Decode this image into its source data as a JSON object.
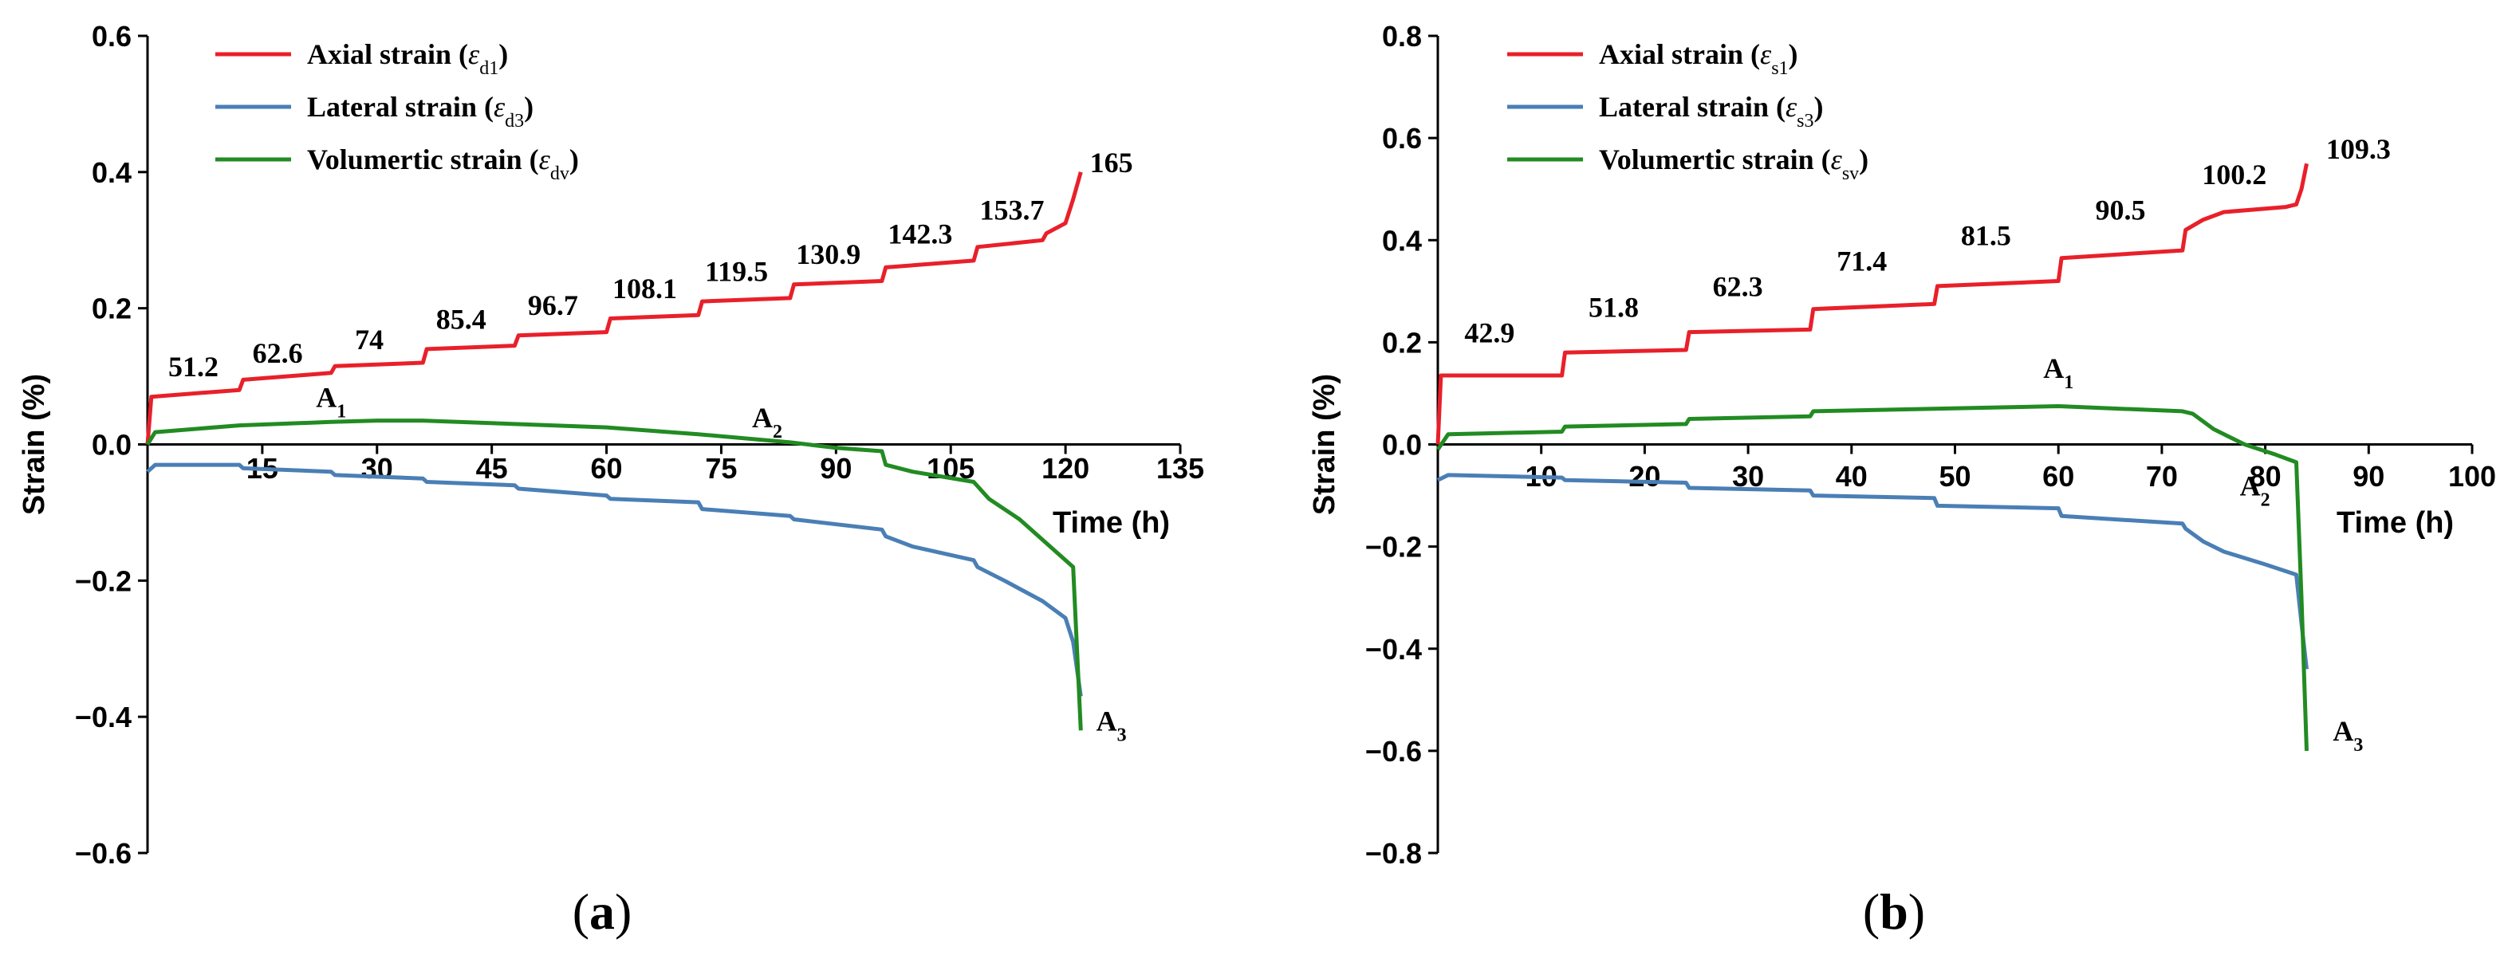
{
  "colors": {
    "axial": "#e8202a",
    "lateral": "#4a7fb5",
    "volumetric": "#228b22",
    "axis": "#000000"
  },
  "chart_data": [
    {
      "type": "line",
      "panel_label": "(a)",
      "panel_letter": "a",
      "ylabel": "Strain (%)",
      "xlabel": "Time (h)",
      "ylim": [
        -0.6,
        0.6
      ],
      "xlim": [
        0,
        135
      ],
      "yticks": [
        {
          "v": 0.6,
          "label": "0.6"
        },
        {
          "v": 0.4,
          "label": "0.4"
        },
        {
          "v": 0.2,
          "label": "0.2"
        },
        {
          "v": 0.0,
          "label": "0.0"
        },
        {
          "v": -0.2,
          "label": "−0.2"
        },
        {
          "v": -0.4,
          "label": "−0.4"
        },
        {
          "v": -0.6,
          "label": "−0.6"
        }
      ],
      "xticks": [
        {
          "v": 15,
          "label": "15"
        },
        {
          "v": 30,
          "label": "30"
        },
        {
          "v": 45,
          "label": "45"
        },
        {
          "v": 60,
          "label": "60"
        },
        {
          "v": 75,
          "label": "75"
        },
        {
          "v": 90,
          "label": "90"
        },
        {
          "v": 105,
          "label": "105"
        },
        {
          "v": 120,
          "label": "120"
        },
        {
          "v": 135,
          "label": "135"
        }
      ],
      "legend": [
        {
          "key": "axial",
          "text": "Axial strain (",
          "sym": "ε",
          "sub": "d1",
          "close": ")"
        },
        {
          "key": "lateral",
          "text": "Lateral strain (",
          "sym": "ε",
          "sub": "d3",
          "close": ")"
        },
        {
          "key": "volumetric",
          "text": "Volumertic strain (",
          "sym": "ε",
          "sub": "dv",
          "close": ")"
        }
      ],
      "series": [
        {
          "name": "Axial strain",
          "key": "axial",
          "x": [
            0,
            0.5,
            12,
            12.5,
            24,
            24.5,
            36,
            36.5,
            48,
            48.5,
            60,
            60.5,
            72,
            72.5,
            84,
            84.5,
            96,
            96.5,
            108,
            108.5,
            117,
            117.5,
            120,
            121,
            122
          ],
          "y": [
            0.0,
            0.07,
            0.08,
            0.095,
            0.105,
            0.115,
            0.12,
            0.14,
            0.145,
            0.16,
            0.165,
            0.185,
            0.19,
            0.21,
            0.215,
            0.235,
            0.24,
            0.26,
            0.27,
            0.29,
            0.3,
            0.31,
            0.325,
            0.36,
            0.4
          ]
        },
        {
          "name": "Lateral strain",
          "key": "lateral",
          "x": [
            0,
            1,
            12,
            12.5,
            24,
            24.5,
            36,
            36.5,
            48,
            48.5,
            60,
            60.5,
            72,
            72.5,
            84,
            84.5,
            96,
            96.5,
            100,
            108,
            108.5,
            112,
            117,
            120,
            121,
            121.5,
            122
          ],
          "y": [
            -0.04,
            -0.03,
            -0.03,
            -0.035,
            -0.04,
            -0.045,
            -0.05,
            -0.055,
            -0.06,
            -0.065,
            -0.075,
            -0.08,
            -0.085,
            -0.095,
            -0.105,
            -0.11,
            -0.125,
            -0.135,
            -0.15,
            -0.17,
            -0.18,
            -0.2,
            -0.23,
            -0.255,
            -0.29,
            -0.33,
            -0.37
          ]
        },
        {
          "name": "Volumetric strain",
          "key": "volumetric",
          "x": [
            0,
            1,
            12,
            24,
            30,
            36,
            48,
            60,
            72,
            84,
            90,
            96,
            96.5,
            100,
            108,
            110,
            114,
            118,
            121,
            121.5,
            122
          ],
          "y": [
            0.0,
            0.018,
            0.028,
            0.033,
            0.035,
            0.035,
            0.03,
            0.025,
            0.015,
            0.003,
            -0.005,
            -0.01,
            -0.03,
            -0.04,
            -0.055,
            -0.08,
            -0.11,
            -0.15,
            -0.18,
            -0.3,
            -0.42
          ]
        }
      ],
      "stress_labels": [
        {
          "x": 6,
          "y": 0.1,
          "text": "51.2"
        },
        {
          "x": 17,
          "y": 0.12,
          "text": "62.6"
        },
        {
          "x": 29,
          "y": 0.14,
          "text": "74"
        },
        {
          "x": 41,
          "y": 0.17,
          "text": "85.4"
        },
        {
          "x": 53,
          "y": 0.19,
          "text": "96.7"
        },
        {
          "x": 65,
          "y": 0.215,
          "text": "108.1"
        },
        {
          "x": 77,
          "y": 0.24,
          "text": "119.5"
        },
        {
          "x": 89,
          "y": 0.265,
          "text": "130.9"
        },
        {
          "x": 101,
          "y": 0.295,
          "text": "142.3"
        },
        {
          "x": 113,
          "y": 0.33,
          "text": "153.7"
        },
        {
          "x": 126,
          "y": 0.4,
          "text": "165"
        }
      ],
      "points": [
        {
          "x": 24,
          "y": 0.055,
          "text": "A",
          "sub": "1"
        },
        {
          "x": 81,
          "y": 0.025,
          "text": "A",
          "sub": "2"
        },
        {
          "x": 126,
          "y": -0.42,
          "text": "A",
          "sub": "3"
        }
      ]
    },
    {
      "type": "line",
      "panel_label": "(b)",
      "panel_letter": "b",
      "ylabel": "Strain (%)",
      "xlabel": "Time (h)",
      "ylim": [
        -0.8,
        0.8
      ],
      "xlim": [
        0,
        100
      ],
      "yticks": [
        {
          "v": 0.8,
          "label": "0.8"
        },
        {
          "v": 0.6,
          "label": "0.6"
        },
        {
          "v": 0.4,
          "label": "0.4"
        },
        {
          "v": 0.2,
          "label": "0.2"
        },
        {
          "v": 0.0,
          "label": "0.0"
        },
        {
          "v": -0.2,
          "label": "−0.2"
        },
        {
          "v": -0.4,
          "label": "−0.4"
        },
        {
          "v": -0.6,
          "label": "−0.6"
        },
        {
          "v": -0.8,
          "label": "−0.8"
        }
      ],
      "xticks": [
        {
          "v": 10,
          "label": "10"
        },
        {
          "v": 20,
          "label": "20"
        },
        {
          "v": 30,
          "label": "30"
        },
        {
          "v": 40,
          "label": "40"
        },
        {
          "v": 50,
          "label": "50"
        },
        {
          "v": 60,
          "label": "60"
        },
        {
          "v": 70,
          "label": "70"
        },
        {
          "v": 80,
          "label": "80"
        },
        {
          "v": 90,
          "label": "90"
        },
        {
          "v": 100,
          "label": "100"
        }
      ],
      "legend": [
        {
          "key": "axial",
          "text": "Axial strain (",
          "sym": "ε",
          "sub": "s1",
          "close": ")"
        },
        {
          "key": "lateral",
          "text": "Lateral strain (",
          "sym": "ε",
          "sub": "s3",
          "close": ")"
        },
        {
          "key": "volumetric",
          "text": "Volumertic strain (",
          "sym": "ε",
          "sub": "sv",
          "close": ")"
        }
      ],
      "series": [
        {
          "name": "Axial strain",
          "key": "axial",
          "x": [
            0,
            0.3,
            12,
            12.3,
            24,
            24.3,
            36,
            36.3,
            48,
            48.3,
            60,
            60.3,
            72,
            72.3,
            74,
            76,
            82,
            83,
            83.5,
            84
          ],
          "y": [
            0.0,
            0.135,
            0.135,
            0.18,
            0.185,
            0.22,
            0.225,
            0.265,
            0.275,
            0.31,
            0.32,
            0.365,
            0.38,
            0.42,
            0.44,
            0.455,
            0.465,
            0.47,
            0.5,
            0.55
          ]
        },
        {
          "name": "Lateral strain",
          "key": "lateral",
          "x": [
            0,
            1,
            12,
            12.3,
            24,
            24.3,
            36,
            36.3,
            48,
            48.3,
            60,
            60.3,
            72,
            72.3,
            74,
            76,
            80,
            83,
            83.5,
            84
          ],
          "y": [
            -0.07,
            -0.06,
            -0.065,
            -0.07,
            -0.075,
            -0.085,
            -0.09,
            -0.1,
            -0.105,
            -0.12,
            -0.125,
            -0.14,
            -0.155,
            -0.165,
            -0.19,
            -0.21,
            -0.235,
            -0.255,
            -0.35,
            -0.44
          ]
        },
        {
          "name": "Volumetric strain",
          "key": "volumetric",
          "x": [
            0,
            1,
            12,
            12.3,
            24,
            24.3,
            36,
            36.3,
            48,
            60,
            66,
            72,
            73,
            75,
            78,
            81,
            83,
            83.5,
            84
          ],
          "y": [
            -0.01,
            0.02,
            0.025,
            0.035,
            0.04,
            0.05,
            0.055,
            0.065,
            0.07,
            0.075,
            0.07,
            0.065,
            0.06,
            0.03,
            0.0,
            -0.02,
            -0.035,
            -0.3,
            -0.6
          ]
        }
      ],
      "stress_labels": [
        {
          "x": 5,
          "y": 0.2,
          "text": "42.9"
        },
        {
          "x": 17,
          "y": 0.25,
          "text": "51.8"
        },
        {
          "x": 29,
          "y": 0.29,
          "text": "62.3"
        },
        {
          "x": 41,
          "y": 0.34,
          "text": "71.4"
        },
        {
          "x": 53,
          "y": 0.39,
          "text": "81.5"
        },
        {
          "x": 66,
          "y": 0.44,
          "text": "90.5"
        },
        {
          "x": 77,
          "y": 0.51,
          "text": "100.2"
        },
        {
          "x": 89,
          "y": 0.56,
          "text": "109.3"
        }
      ],
      "points": [
        {
          "x": 60,
          "y": 0.13,
          "text": "A",
          "sub": "1"
        },
        {
          "x": 79,
          "y": -0.1,
          "text": "A",
          "sub": "2"
        },
        {
          "x": 88,
          "y": -0.58,
          "text": "A",
          "sub": "3"
        }
      ]
    }
  ]
}
